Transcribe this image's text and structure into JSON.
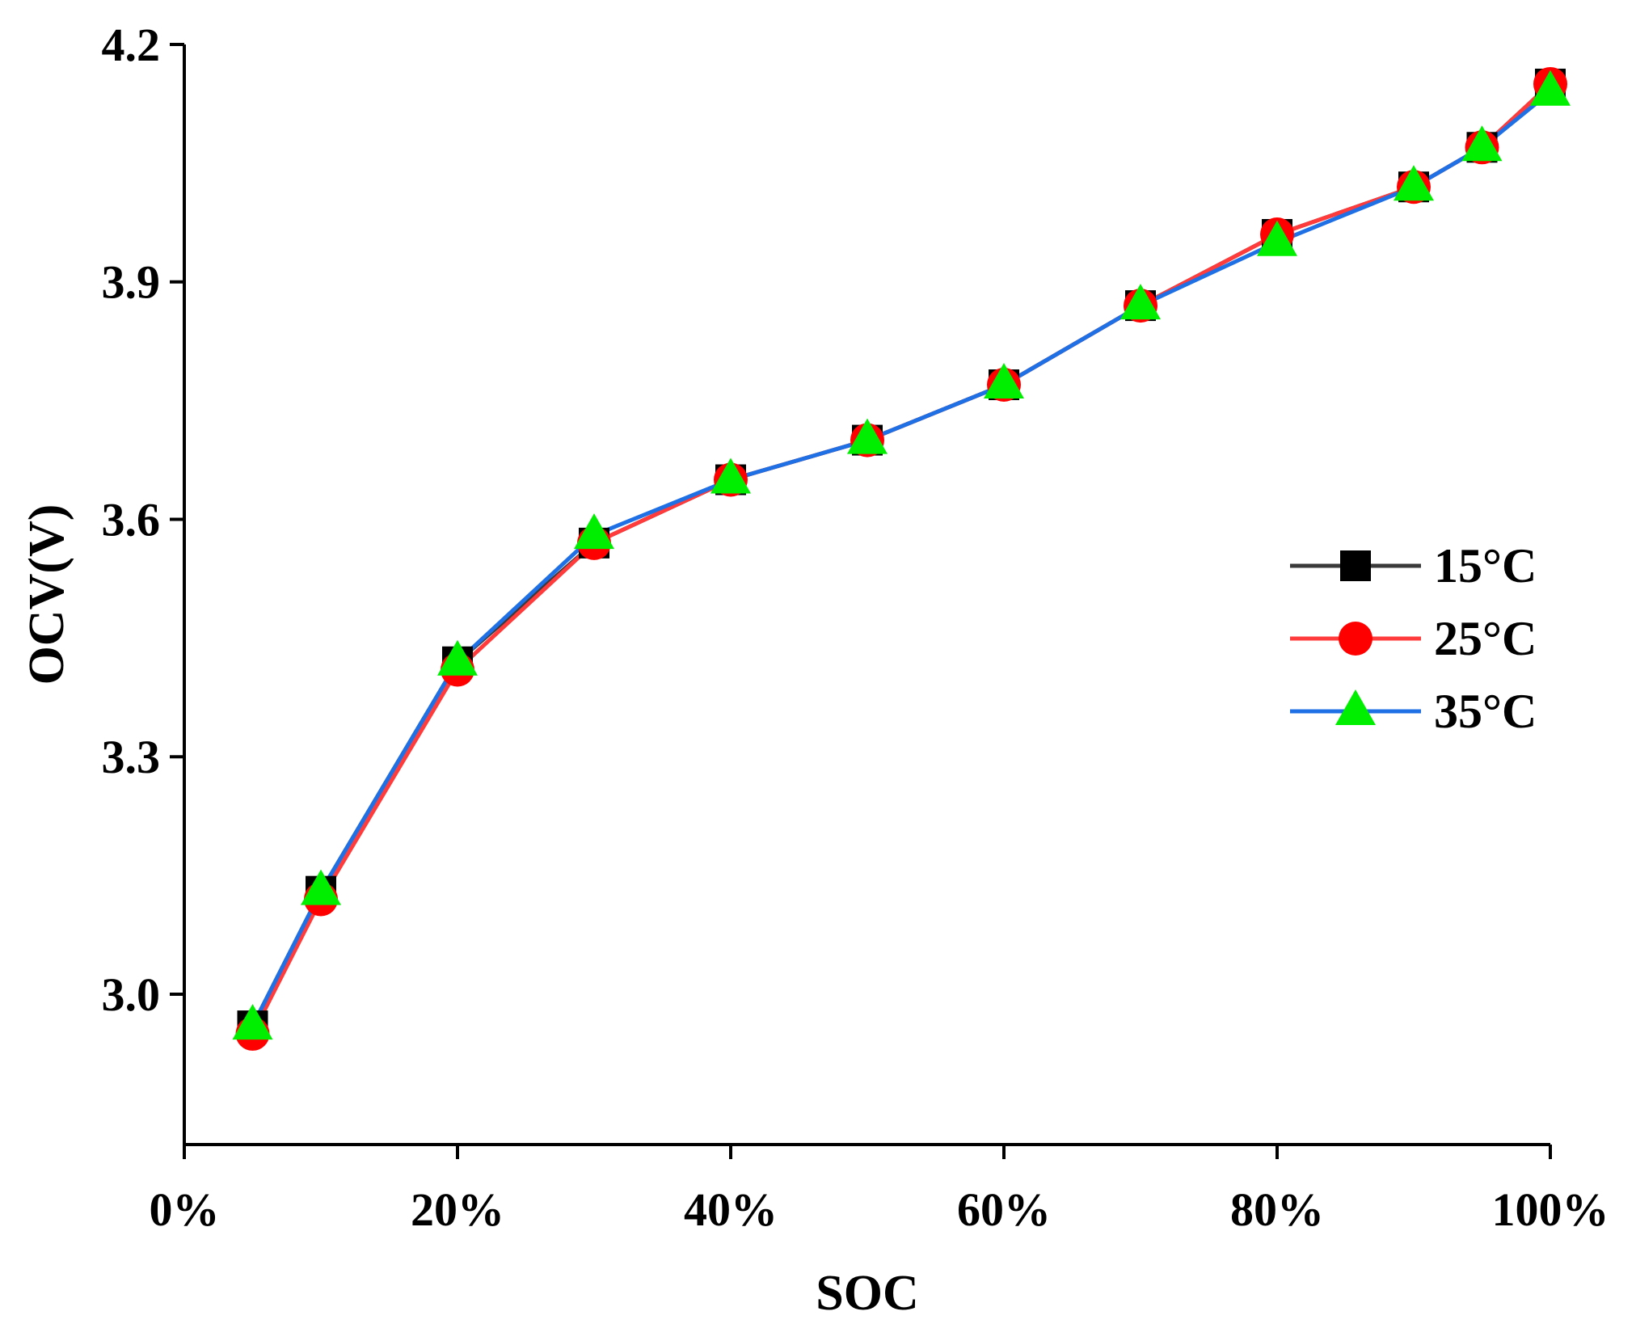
{
  "chart_data": {
    "type": "line",
    "title": "",
    "xlabel": "SOC",
    "ylabel": "OCV(V)",
    "xlim": [
      0,
      100
    ],
    "ylim": [
      2.81,
      4.2
    ],
    "xticks": [
      0,
      20,
      40,
      60,
      80,
      100
    ],
    "xtick_labels": [
      "0%",
      "20%",
      "40%",
      "60%",
      "80%",
      "100%"
    ],
    "yticks": [
      3.0,
      3.3,
      3.6,
      3.9,
      4.2
    ],
    "ytick_labels": [
      "3.0",
      "3.3",
      "3.6",
      "3.9",
      "4.2"
    ],
    "grid": false,
    "legend_position": "right",
    "x": [
      5,
      10,
      20,
      30,
      40,
      50,
      60,
      70,
      80,
      90,
      95,
      100
    ],
    "series": [
      {
        "name": "15°C",
        "color": "#3a3a3a",
        "marker": "square",
        "marker_color": "#000000",
        "values": [
          2.96,
          3.13,
          3.42,
          3.57,
          3.65,
          3.7,
          3.77,
          3.87,
          3.96,
          4.02,
          4.07,
          4.15
        ]
      },
      {
        "name": "25°C",
        "color": "#ff3b3b",
        "marker": "circle",
        "marker_color": "#ff0000",
        "values": [
          2.95,
          3.12,
          3.41,
          3.57,
          3.65,
          3.7,
          3.77,
          3.87,
          3.96,
          4.02,
          4.07,
          4.15
        ]
      },
      {
        "name": "35°C",
        "color": "#1f6fe5",
        "marker": "triangle",
        "marker_color": "#00ee00",
        "values": [
          2.96,
          3.13,
          3.42,
          3.58,
          3.65,
          3.7,
          3.77,
          3.87,
          3.95,
          4.02,
          4.07,
          4.14
        ]
      }
    ]
  }
}
